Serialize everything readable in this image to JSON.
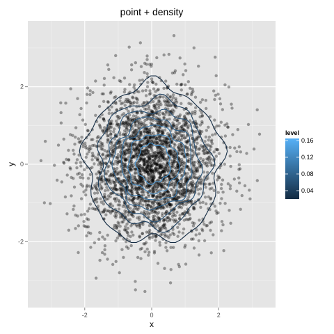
{
  "chart_data": {
    "type": "scatter",
    "title": "point + density",
    "xlabel": "x",
    "ylabel": "y",
    "xlim": [
      -3.7,
      3.7
    ],
    "ylim": [
      -3.7,
      3.7
    ],
    "x_ticks": [
      -2,
      0,
      2
    ],
    "y_ticks": [
      -2,
      0,
      2
    ],
    "grid": true,
    "points": {
      "distribution": "bivariate standard normal",
      "n": 3000,
      "color": "#000000",
      "opacity": 0.35
    },
    "contour_levels": [
      0.02,
      0.04,
      0.06,
      0.08,
      0.1,
      0.12,
      0.14,
      0.16
    ],
    "legend": {
      "title": "level",
      "position": "right",
      "range": [
        0.02,
        0.165
      ],
      "ticks": [
        0.04,
        0.08,
        0.12,
        0.16
      ],
      "tick_labels": [
        "0.04",
        "0.08",
        "0.12",
        "0.16"
      ],
      "color_low": "#132B43",
      "color_high": "#56B1F7"
    },
    "background_color": "#E5E5E5",
    "grid_color": "#FFFFFF"
  }
}
